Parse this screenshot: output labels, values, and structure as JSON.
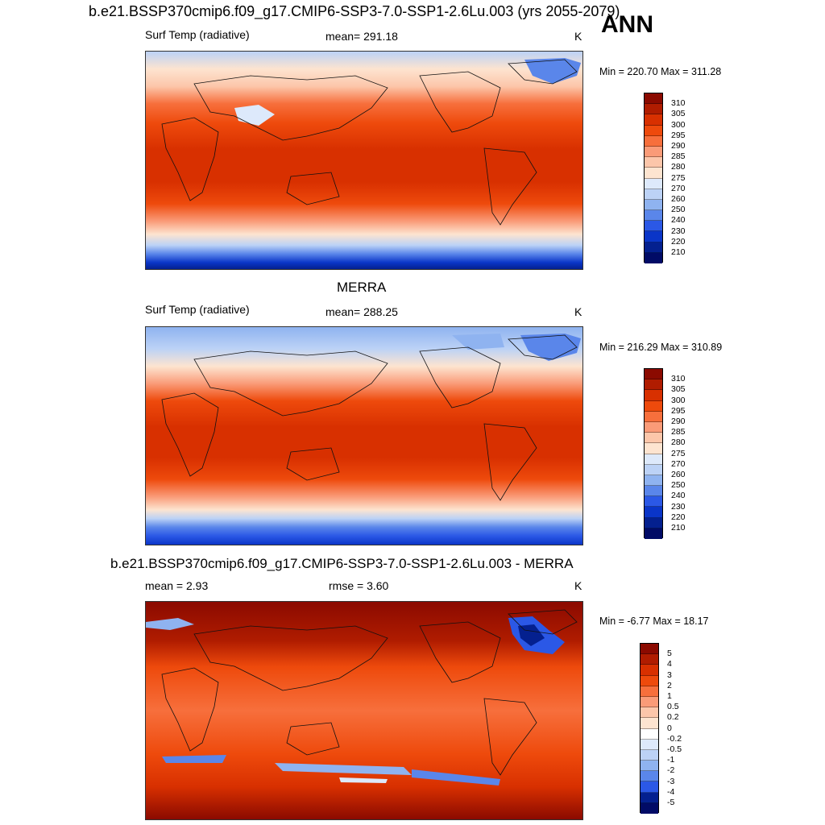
{
  "header": {
    "title": "b.e21.BSSP370cmip6.f09_g17.CMIP6-SSP3-7.0-SSP1-2.6Lu.003 (yrs 2055-2079)",
    "season": "ANN"
  },
  "panels": [
    {
      "id": "model",
      "variable": "Surf Temp (radiative)",
      "stat": "mean= 291.18",
      "units": "K",
      "minmax": "Min = 220.70 Max = 311.28",
      "colorbar": {
        "labels": [
          "310",
          "305",
          "300",
          "295",
          "290",
          "285",
          "280",
          "275",
          "270",
          "260",
          "250",
          "240",
          "230",
          "220",
          "210"
        ],
        "colors": [
          "#8b0a00",
          "#b01c00",
          "#d83000",
          "#ee4a0c",
          "#f76f3c",
          "#fa9b78",
          "#fcc6aa",
          "#fde4d0",
          "#dde9fb",
          "#bcd2f6",
          "#8fb3f0",
          "#5a86ea",
          "#2b58e6",
          "#0a35c8",
          "#04208f",
          "#010b66"
        ]
      }
    },
    {
      "id": "obs",
      "title": "MERRA",
      "variable": "Surf Temp (radiative)",
      "stat": "mean= 288.25",
      "units": "K",
      "minmax": "Min = 216.29 Max = 310.89",
      "colorbar": {
        "labels": [
          "310",
          "305",
          "300",
          "295",
          "290",
          "285",
          "280",
          "275",
          "270",
          "260",
          "250",
          "240",
          "230",
          "220",
          "210"
        ],
        "colors": [
          "#8b0a00",
          "#b01c00",
          "#d83000",
          "#ee4a0c",
          "#f76f3c",
          "#fa9b78",
          "#fcc6aa",
          "#fde4d0",
          "#dde9fb",
          "#bcd2f6",
          "#8fb3f0",
          "#5a86ea",
          "#2b58e6",
          "#0a35c8",
          "#04208f",
          "#010b66"
        ]
      }
    },
    {
      "id": "diff",
      "title": "b.e21.BSSP370cmip6.f09_g17.CMIP6-SSP3-7.0-SSP1-2.6Lu.003 - MERRA",
      "mean": "mean =   2.93",
      "rmse": "rmse =   3.60",
      "units": "K",
      "minmax": "Min =  -6.77 Max =  18.17",
      "colorbar": {
        "labels": [
          "5",
          "4",
          "3",
          "2",
          "1",
          "0.5",
          "0.2",
          "0",
          "-0.2",
          "-0.5",
          "-1",
          "-2",
          "-3",
          "-4",
          "-5"
        ],
        "colors": [
          "#8b0a00",
          "#b01c00",
          "#d83000",
          "#ee4a0c",
          "#f76f3c",
          "#fa9b78",
          "#fcc6aa",
          "#fde4d0",
          "#ffffff",
          "#dde9fb",
          "#bcd2f6",
          "#8fb3f0",
          "#5a86ea",
          "#2b58e6",
          "#04208f",
          "#010b66"
        ]
      }
    }
  ]
}
